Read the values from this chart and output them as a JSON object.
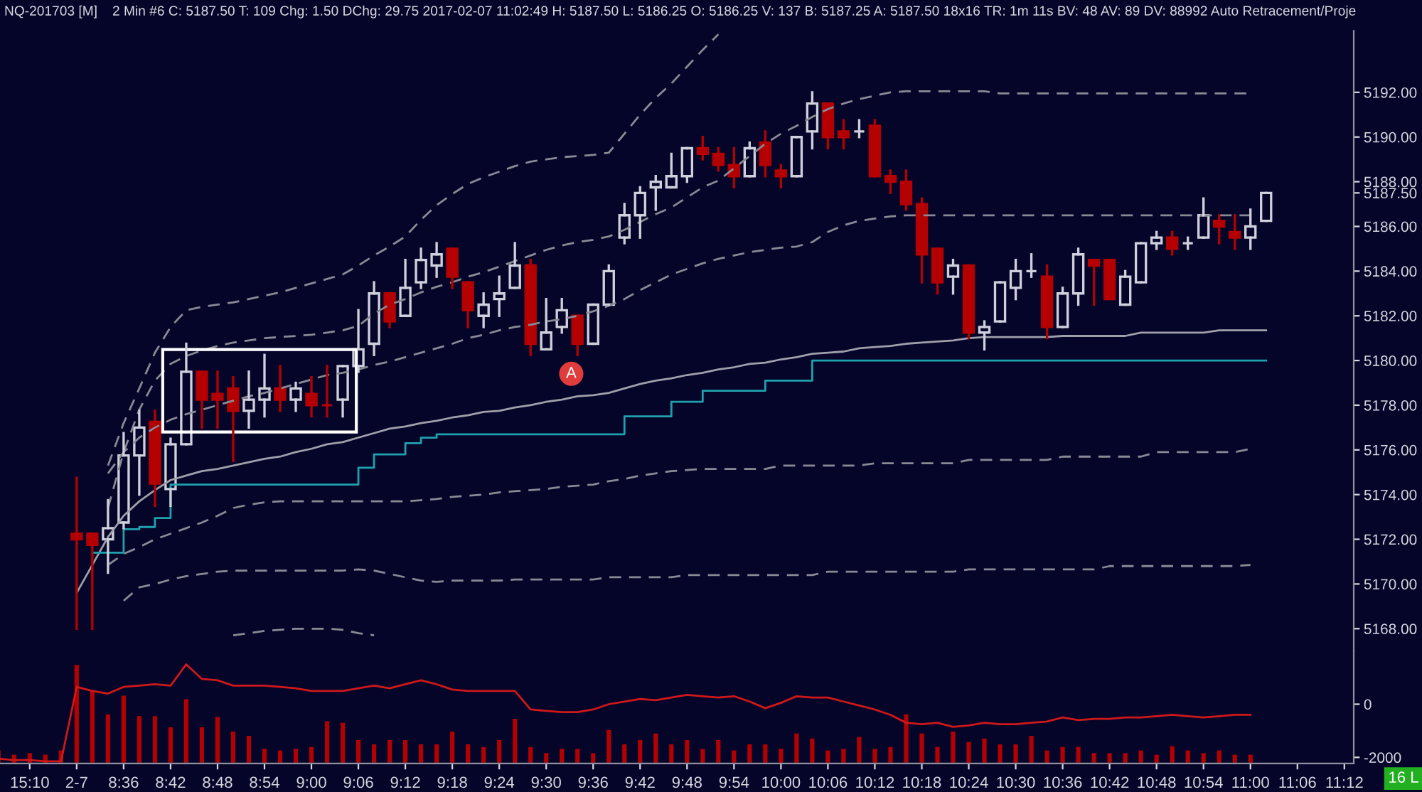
{
  "chart_data": [
    {
      "type": "candlestick",
      "title": "NQ-201703 [M]",
      "subtitle": "2 Min #6 C: 5187.50 T: 109 Chg: 1.50 DChg: 29.75 2017-02-07 11:02:49 H: 5187.50 L: 5186.25 O: 5186.25 V: 137 B: 5187.25 A: 5187.50 18x16 TR: 1m 11s BV: 48 AV: 89 DV: 88992 Auto Retracement/Proje",
      "ohlc": [
        null,
        null,
        null,
        null,
        null,
        [
          5172.25,
          5174.75,
          5168.0,
          5172.0
        ],
        [
          5172.25,
          5172.25,
          5168.0,
          5171.75
        ],
        [
          5172.0,
          5173.75,
          5170.5,
          5172.5
        ],
        [
          5172.75,
          5176.75,
          5172.5,
          5175.75
        ],
        [
          5175.75,
          5177.75,
          5174.0,
          5177.0
        ],
        [
          5177.25,
          5177.75,
          5173.5,
          5174.5
        ],
        [
          5174.25,
          5176.5,
          5173.5,
          5176.25
        ],
        [
          5176.25,
          5180.75,
          5176.25,
          5179.5
        ],
        [
          5179.5,
          5179.5,
          5177.0,
          5178.25
        ],
        [
          5178.5,
          5179.5,
          5177.0,
          5178.25
        ],
        [
          5178.75,
          5179.25,
          5175.5,
          5177.75
        ],
        [
          5177.75,
          5179.5,
          5177.0,
          5178.25
        ],
        [
          5178.25,
          5180.25,
          5177.5,
          5178.75
        ],
        [
          5178.75,
          5179.75,
          5177.75,
          5178.25
        ],
        [
          5178.25,
          5179.0,
          5177.75,
          5178.75
        ],
        [
          5178.5,
          5179.25,
          5177.5,
          5178.0
        ],
        [
          5178.0,
          5179.75,
          5177.5,
          5178.0
        ],
        [
          5178.25,
          5179.75,
          5177.5,
          5179.75
        ],
        [
          5179.75,
          5182.25,
          5179.5,
          5180.5
        ],
        [
          5180.75,
          5183.5,
          5180.25,
          5183.0
        ],
        [
          5183.0,
          5183.0,
          5181.5,
          5181.75
        ],
        [
          5182.0,
          5184.5,
          5182.0,
          5183.25
        ],
        [
          5183.5,
          5185.0,
          5183.25,
          5184.5
        ],
        [
          5184.25,
          5185.25,
          5183.75,
          5184.75
        ],
        [
          5185.0,
          5185.0,
          5183.25,
          5183.75
        ],
        [
          5183.5,
          5183.5,
          5181.5,
          5182.25
        ],
        [
          5182.0,
          5183.0,
          5181.5,
          5182.5
        ],
        [
          5182.75,
          5183.75,
          5182.0,
          5183.0
        ],
        [
          5183.25,
          5185.25,
          5183.25,
          5184.25
        ],
        [
          5184.25,
          5184.5,
          5180.25,
          5180.75
        ],
        [
          5180.5,
          5182.75,
          5180.5,
          5181.25
        ],
        [
          5181.5,
          5182.75,
          5181.25,
          5182.25
        ],
        [
          5182.0,
          5182.0,
          5180.25,
          5180.75
        ],
        [
          5180.75,
          5182.5,
          5180.75,
          5182.5
        ],
        [
          5182.5,
          5184.25,
          5182.5,
          5184.0
        ],
        [
          5185.5,
          5187.0,
          5185.25,
          5186.5
        ],
        [
          5186.5,
          5187.75,
          5185.5,
          5187.5
        ],
        [
          5187.75,
          5188.25,
          5186.75,
          5188.0
        ],
        [
          5187.75,
          5189.25,
          5187.75,
          5188.25
        ],
        [
          5188.25,
          5189.5,
          5188.0,
          5189.5
        ],
        [
          5189.5,
          5190.0,
          5189.0,
          5189.25
        ],
        [
          5189.25,
          5189.5,
          5188.5,
          5188.75
        ],
        [
          5188.75,
          5189.5,
          5187.75,
          5188.25
        ],
        [
          5188.25,
          5189.75,
          5188.25,
          5189.5
        ],
        [
          5189.75,
          5190.25,
          5188.25,
          5188.75
        ],
        [
          5188.5,
          5188.75,
          5187.75,
          5188.25
        ],
        [
          5188.25,
          5190.0,
          5188.25,
          5190.0
        ],
        [
          5190.25,
          5192.0,
          5189.5,
          5191.5
        ],
        [
          5191.5,
          5191.5,
          5189.5,
          5190.0
        ],
        [
          5190.25,
          5190.75,
          5189.5,
          5190.0
        ],
        [
          5190.25,
          5190.75,
          5190.0,
          5190.25
        ],
        [
          5190.5,
          5190.75,
          5188.25,
          5188.25
        ],
        [
          5188.25,
          5188.5,
          5187.5,
          5188.0
        ],
        [
          5188.0,
          5188.5,
          5186.75,
          5187.0
        ],
        [
          5187.0,
          5187.25,
          5183.5,
          5184.75
        ],
        [
          5185.0,
          5185.0,
          5183.0,
          5183.5
        ],
        [
          5183.75,
          5184.5,
          5183.0,
          5184.25
        ],
        [
          5184.25,
          5184.25,
          5181.0,
          5181.25
        ],
        [
          5181.25,
          5181.75,
          5180.5,
          5181.5
        ],
        [
          5181.75,
          5183.5,
          5181.75,
          5183.5
        ],
        [
          5183.25,
          5184.5,
          5182.75,
          5184.0
        ],
        [
          5184.0,
          5184.75,
          5183.75,
          5184.0
        ],
        [
          5183.75,
          5184.25,
          5181.0,
          5181.5
        ],
        [
          5181.5,
          5183.25,
          5181.5,
          5183.0
        ],
        [
          5183.0,
          5185.0,
          5182.5,
          5184.75
        ],
        [
          5184.5,
          5184.5,
          5182.5,
          5184.25
        ],
        [
          5184.5,
          5184.5,
          5182.75,
          5182.75
        ],
        [
          5182.5,
          5184.0,
          5182.5,
          5183.75
        ],
        [
          5183.5,
          5185.25,
          5183.5,
          5185.25
        ],
        [
          5185.25,
          5185.75,
          5185.0,
          5185.5
        ],
        [
          5185.5,
          5185.75,
          5184.75,
          5185.0
        ],
        [
          5185.25,
          5185.5,
          5185.0,
          5185.25
        ],
        [
          5185.5,
          5187.25,
          5185.5,
          5186.5
        ],
        [
          5186.25,
          5186.5,
          5185.25,
          5186.0
        ],
        [
          5185.75,
          5186.5,
          5185.0,
          5185.5
        ],
        [
          5185.5,
          5186.75,
          5185.0,
          5186.0
        ],
        [
          5186.25,
          5187.5,
          5186.25,
          5187.5
        ],
        null,
        null,
        null,
        null,
        null
      ],
      "colors": [
        null,
        null,
        null,
        null,
        null,
        "#b40000",
        "#b40000",
        "#d0d0dc",
        "#d0d0dc",
        "#d0d0dc",
        "#b40000",
        "#d0d0dc",
        "#d0d0dc",
        "#b40000",
        "#b40000",
        "#b40000",
        "#d0d0dc",
        "#d0d0dc",
        "#b40000",
        "#d0d0dc",
        "#b40000",
        "#b40000",
        "#d0d0dc",
        "#d0d0dc",
        "#d0d0dc",
        "#b40000",
        "#d0d0dc",
        "#d0d0dc",
        "#d0d0dc",
        "#b40000",
        "#b40000",
        "#d0d0dc",
        "#d0d0dc",
        "#d0d0dc",
        "#b40000",
        "#d0d0dc",
        "#d0d0dc",
        "#b40000",
        "#d0d0dc",
        "#d0d0dc",
        "#d0d0dc",
        "#d0d0dc",
        "#d0d0dc",
        "#d0d0dc",
        "#d0d0dc",
        "#b40000",
        "#b40000",
        "#b40000",
        "#d0d0dc",
        "#b40000",
        "#b40000",
        "#d0d0dc",
        "#d0d0dc",
        "#b40000",
        "#b40000",
        "#d0d0dc",
        "#b40000",
        "#b40000",
        "#b40000",
        "#b40000",
        "#b40000",
        "#d0d0dc",
        "#b40000",
        "#d0d0dc",
        "#d0d0dc",
        "#d0d0dc",
        "#d0d0dc",
        "#b40000",
        "#d0d0dc",
        "#d0d0dc",
        "#b40000",
        "#b40000",
        "#d0d0dc",
        "#d0d0dc",
        "#d0d0dc",
        "#b40000",
        "#d0d0dc",
        "#d0d0dc",
        "#b40000",
        "#b40000",
        "#d0d0dc",
        "#d0d0dc",
        null,
        null,
        null,
        null,
        null
      ],
      "series": [
        {
          "type": "line",
          "line_style": "dashed",
          "color": "#8a8a95",
          "values": [
            null,
            null,
            null,
            null,
            null,
            null,
            null,
            5175.3,
            5177.2,
            5178.75,
            5180.35,
            5181.5,
            5182.25,
            5182.4,
            5182.5,
            5182.6,
            5182.75,
            5182.9,
            5183.05,
            5183.25,
            5183.45,
            5183.65,
            5183.85,
            5184.25,
            5184.7,
            5185.1,
            5185.55,
            5186.3,
            5186.95,
            5187.45,
            5187.9,
            5188.2,
            5188.45,
            5188.7,
            5188.9,
            5189.0,
            5189.1,
            5189.15,
            5189.2,
            5189.3,
            5190.15,
            5191.0,
            5191.75,
            5192.4,
            5193.15,
            5193.9,
            5194.6,
            null,
            null,
            null,
            null,
            null,
            null,
            null,
            null,
            null,
            null,
            null,
            null,
            null,
            null,
            null,
            null,
            null,
            null,
            null,
            null,
            null,
            null,
            null,
            null,
            null,
            null,
            null,
            null,
            null,
            null,
            null,
            null,
            null,
            null,
            null,
            null,
            null,
            null,
            null,
            null
          ]
        },
        {
          "type": "line",
          "line_style": "dashed",
          "color": "#8a8a95",
          "values": [
            null,
            null,
            null,
            null,
            null,
            null,
            null,
            5173.4,
            5175.9,
            5177.8,
            5179.1,
            5179.85,
            5180.2,
            5180.45,
            5180.65,
            5180.8,
            5180.9,
            5181.0,
            5181.05,
            5181.1,
            5181.15,
            5181.25,
            5181.35,
            5181.55,
            5182.1,
            5182.5,
            5182.75,
            5183.05,
            5183.3,
            5183.5,
            5183.75,
            5183.95,
            5184.2,
            5184.45,
            5184.7,
            5184.95,
            5185.15,
            5185.3,
            5185.4,
            5185.55,
            5185.85,
            5186.2,
            5186.55,
            5186.85,
            5187.3,
            5187.75,
            5188.05,
            5188.6,
            5189.15,
            5189.7,
            5190.15,
            5190.5,
            5190.9,
            5191.25,
            5191.5,
            5191.7,
            5191.85,
            5192.0,
            5192.05,
            5192.05,
            5192.05,
            5192.05,
            5192.05,
            5192.05,
            5191.95,
            5191.95,
            5191.95,
            5191.95,
            5191.95,
            5191.95,
            5191.95,
            5191.95,
            5191.95,
            5191.95,
            5191.95,
            5191.95,
            5191.95,
            5191.95,
            5191.95,
            5191.95,
            5191.95,
            null,
            null,
            null,
            null,
            null,
            null
          ]
        },
        {
          "type": "line",
          "line_style": "dashed",
          "color": "#8a8a95",
          "values": [
            null,
            null,
            null,
            null,
            null,
            null,
            null,
            5174.95,
            5175.9,
            5176.55,
            5177.0,
            5177.35,
            5177.6,
            5177.8,
            5178.0,
            5178.2,
            5178.4,
            5178.55,
            5178.75,
            5178.95,
            5179.15,
            5179.35,
            5179.45,
            5179.6,
            5179.8,
            5179.95,
            5180.15,
            5180.35,
            5180.55,
            5180.75,
            5181.0,
            5181.15,
            5181.35,
            5181.5,
            5181.6,
            5181.75,
            5181.85,
            5182.0,
            5182.2,
            5182.45,
            5182.75,
            5183.15,
            5183.5,
            5183.85,
            5184.1,
            5184.35,
            5184.55,
            5184.7,
            5184.85,
            5184.95,
            5185.05,
            5185.1,
            5185.3,
            5185.75,
            5186.05,
            5186.25,
            5186.35,
            5186.45,
            5186.5,
            5186.5,
            5186.5,
            5186.5,
            5186.5,
            5186.5,
            5186.5,
            5186.5,
            5186.5,
            5186.5,
            5186.5,
            5186.5,
            5186.5,
            5186.5,
            5186.5,
            5186.5,
            5186.5,
            5186.5,
            5186.5,
            5186.5,
            5186.5,
            5186.5,
            5186.5,
            null,
            null,
            null,
            null,
            null,
            null
          ]
        },
        {
          "type": "line",
          "line_style": "solid",
          "color": "#a0a0aa",
          "values": [
            null,
            null,
            null,
            null,
            null,
            5169.6,
            5170.85,
            5172.1,
            5173.05,
            5173.7,
            5174.2,
            5174.65,
            5174.85,
            5175.05,
            5175.15,
            5175.3,
            5175.45,
            5175.6,
            5175.7,
            5175.9,
            5176.05,
            5176.25,
            5176.35,
            5176.55,
            5176.75,
            5176.95,
            5177.05,
            5177.2,
            5177.3,
            5177.45,
            5177.55,
            5177.7,
            5177.75,
            5177.9,
            5178.0,
            5178.15,
            5178.25,
            5178.4,
            5178.45,
            5178.55,
            5178.75,
            5178.95,
            5179.1,
            5179.2,
            5179.35,
            5179.45,
            5179.6,
            5179.7,
            5179.85,
            5179.9,
            5180.05,
            5180.15,
            5180.3,
            5180.35,
            5180.4,
            5180.55,
            5180.6,
            5180.65,
            5180.75,
            5180.8,
            5180.85,
            5180.9,
            5181.0,
            5181.05,
            5181.05,
            5181.05,
            5181.05,
            5181.05,
            5181.1,
            5181.1,
            5181.1,
            5181.1,
            5181.1,
            5181.25,
            5181.25,
            5181.25,
            5181.25,
            5181.25,
            5181.35,
            5181.35,
            5181.35,
            5181.35,
            null,
            null,
            null,
            null,
            null
          ]
        },
        {
          "type": "line",
          "line_style": "dashed",
          "color": "#8a8a95",
          "values": [
            null,
            null,
            null,
            null,
            null,
            null,
            null,
            5170.85,
            5171.35,
            5171.65,
            5172.0,
            5172.25,
            5172.5,
            5172.75,
            5173.05,
            5173.4,
            5173.55,
            5173.65,
            5173.7,
            5173.7,
            5173.7,
            5173.7,
            5173.7,
            5173.7,
            5173.7,
            5173.7,
            5173.7,
            5173.75,
            5173.8,
            5173.9,
            5173.95,
            5174.0,
            5174.1,
            5174.15,
            5174.2,
            5174.25,
            5174.35,
            5174.4,
            5174.45,
            5174.6,
            5174.7,
            5174.85,
            5174.95,
            5175.05,
            5175.1,
            5175.15,
            5175.15,
            5175.15,
            5175.15,
            5175.15,
            5175.3,
            5175.3,
            5175.3,
            5175.3,
            5175.3,
            5175.3,
            5175.4,
            5175.4,
            5175.4,
            5175.4,
            5175.4,
            5175.4,
            5175.55,
            5175.55,
            5175.55,
            5175.55,
            5175.55,
            5175.55,
            5175.7,
            5175.7,
            5175.7,
            5175.7,
            5175.7,
            5175.7,
            5175.9,
            5175.9,
            5175.9,
            5175.9,
            5175.9,
            5175.9,
            5176.05,
            null,
            null,
            null,
            null,
            null,
            null
          ]
        },
        {
          "type": "line",
          "line_style": "dashed",
          "color": "#8a8a95",
          "values": [
            null,
            null,
            null,
            null,
            null,
            null,
            null,
            null,
            5169.25,
            5169.85,
            5170.0,
            5170.2,
            5170.35,
            5170.45,
            5170.55,
            5170.6,
            5170.6,
            5170.6,
            5170.6,
            5170.6,
            5170.6,
            5170.6,
            5170.6,
            5170.65,
            5170.6,
            5170.45,
            5170.3,
            5170.15,
            5170.1,
            5170.15,
            5170.15,
            5170.15,
            5170.15,
            5170.2,
            5170.2,
            5170.2,
            5170.2,
            5170.2,
            5170.2,
            5170.3,
            5170.3,
            5170.3,
            5170.3,
            5170.3,
            5170.4,
            5170.4,
            5170.4,
            5170.4,
            5170.4,
            5170.4,
            5170.4,
            5170.4,
            5170.4,
            5170.55,
            5170.55,
            5170.55,
            5170.55,
            5170.55,
            5170.55,
            5170.55,
            5170.55,
            5170.55,
            5170.65,
            5170.65,
            5170.65,
            5170.65,
            5170.65,
            5170.65,
            5170.65,
            5170.65,
            5170.65,
            5170.8,
            5170.8,
            5170.8,
            5170.8,
            5170.8,
            5170.8,
            5170.8,
            5170.8,
            5170.8,
            5170.85,
            null,
            null,
            null,
            null,
            null,
            null
          ]
        },
        {
          "type": "line",
          "line_style": "dashed",
          "color": "#8a8a95",
          "values": [
            null,
            null,
            null,
            null,
            null,
            null,
            null,
            null,
            null,
            null,
            null,
            null,
            null,
            null,
            null,
            5167.7,
            5167.8,
            5167.9,
            5167.95,
            5168.0,
            5168.0,
            5168.0,
            5167.95,
            5167.8,
            5167.7,
            null,
            null,
            null,
            null,
            null,
            null,
            null,
            null,
            null,
            null,
            null,
            null,
            null,
            null,
            null,
            null,
            null,
            null,
            null,
            null,
            null,
            null,
            null,
            null,
            null,
            null,
            null,
            null,
            null,
            null,
            null,
            null,
            null,
            null,
            null,
            null,
            null,
            null,
            null,
            null,
            null,
            null,
            null,
            null,
            null,
            null,
            null,
            null,
            null,
            null,
            null,
            null,
            null,
            null,
            null,
            null,
            null,
            null,
            null,
            null,
            null,
            null
          ]
        },
        {
          "type": "step",
          "line_style": "solid",
          "color": "#1fa2ad",
          "values": [
            null,
            null,
            null,
            null,
            null,
            null,
            5171.4,
            5171.4,
            5172.45,
            5172.55,
            5172.95,
            5174.45,
            5174.45,
            5174.45,
            5174.45,
            5174.45,
            5174.45,
            5174.45,
            5174.45,
            5174.45,
            5174.45,
            5174.45,
            5174.45,
            5175.2,
            5175.8,
            5175.8,
            5176.3,
            5176.55,
            5176.7,
            5176.7,
            5176.7,
            5176.7,
            5176.7,
            5176.7,
            5176.7,
            5176.7,
            5176.7,
            5176.7,
            5176.7,
            5176.7,
            5177.5,
            5177.5,
            5177.5,
            5178.15,
            5178.15,
            5178.65,
            5178.65,
            5178.65,
            5178.65,
            5179.1,
            5179.1,
            5179.1,
            5180.0,
            5180.0,
            5180.0,
            5180.0,
            5180.0,
            5180.0,
            5180.0,
            5180.0,
            5180.0,
            5180.0,
            5180.0,
            5180.0,
            5180.0,
            5180.0,
            5180.0,
            5180.0,
            5180.0,
            5180.0,
            5180.0,
            5180.0,
            5180.0,
            5180.0,
            5180.0,
            5180.0,
            5180.0,
            5180.0,
            5180.0,
            5180.0,
            5180.0,
            5180.0,
            null,
            null,
            null,
            null,
            null
          ]
        }
      ],
      "ylim": [
        5167.0,
        5194.75
      ],
      "yticks": [
        {
          "value": 5168,
          "label": "5168.00"
        },
        {
          "value": 5170,
          "label": "5170.00"
        },
        {
          "value": 5172,
          "label": "5172.00"
        },
        {
          "value": 5174,
          "label": "5174.00"
        },
        {
          "value": 5176,
          "label": "5176.00"
        },
        {
          "value": 5178,
          "label": "5178.00"
        },
        {
          "value": 5180,
          "label": "5180.00"
        },
        {
          "value": 5182,
          "label": "5182.00"
        },
        {
          "value": 5184,
          "label": "5184.00"
        },
        {
          "value": 5186,
          "label": "5186.00"
        },
        {
          "value": 5187.5,
          "label": "5187.50"
        },
        {
          "value": 5188,
          "label": "5188.00"
        },
        {
          "value": 5190,
          "label": "5190.00"
        },
        {
          "value": 5192,
          "label": "5192.00"
        }
      ],
      "tick_labels": "y",
      "annotations": [
        "A"
      ]
    },
    {
      "type": "bar",
      "categories": [
        null,
        null,
        "15:10",
        null,
        null,
        "2-7",
        null,
        null,
        "8:36",
        null,
        null,
        "8:42",
        null,
        null,
        "8:48",
        null,
        null,
        "8:54",
        null,
        null,
        "9:00",
        null,
        null,
        "9:06",
        null,
        null,
        "9:12",
        null,
        null,
        "9:18",
        null,
        null,
        "9:24",
        null,
        null,
        "9:30",
        null,
        null,
        "9:36",
        null,
        null,
        "9:42",
        null,
        null,
        "9:48",
        null,
        null,
        "9:54",
        null,
        null,
        "10:00",
        null,
        null,
        "10:06",
        null,
        null,
        "10:12",
        null,
        null,
        "10:18",
        null,
        null,
        "10:24",
        null,
        null,
        "10:30",
        null,
        null,
        "10:36",
        null,
        null,
        "10:42",
        null,
        null,
        "10:48",
        null,
        null,
        "10:54",
        null,
        null,
        "11:00",
        null,
        null,
        "11:06",
        null,
        null,
        "11:12"
      ],
      "series": [
        {
          "type": "bar",
          "color": "#b40000",
          "values": [
            460,
            300,
            360,
            300,
            460,
            3680,
            2680,
            1820,
            2520,
            1750,
            1750,
            1330,
            2390,
            1330,
            1720,
            1170,
            1010,
            520,
            460,
            520,
            590,
            1560,
            1500,
            850,
            690,
            850,
            850,
            690,
            690,
            1170,
            690,
            590,
            850,
            1650,
            590,
            360,
            520,
            520,
            360,
            1230,
            690,
            850,
            1100,
            690,
            850,
            520,
            850,
            460,
            690,
            690,
            520,
            1100,
            910,
            460,
            520,
            970,
            520,
            590,
            1820,
            1100,
            590,
            1170,
            780,
            910,
            690,
            690,
            1010,
            460,
            590,
            590,
            360,
            360,
            360,
            460,
            300,
            620,
            460,
            360,
            460,
            300,
            300,
            null,
            null,
            null,
            null,
            null,
            null
          ],
          "base": [
            -2200,
            -2200,
            -2200,
            -2200,
            -2200,
            -2200,
            -2200,
            -2200,
            -2200,
            -2200,
            -2200,
            -2200,
            -2200,
            -2200,
            -2200,
            -2200,
            -2200,
            -2200,
            -2200,
            -2200,
            -2200,
            -2200,
            -2200,
            -2200,
            -2200,
            -2200,
            -2200,
            -2200,
            -2200,
            -2200,
            -2200,
            -2200,
            -2200,
            -2200,
            -2200,
            -2200,
            -2200,
            -2200,
            -2200,
            -2200,
            -2200,
            -2200,
            -2200,
            -2200,
            -2200,
            -2200,
            -2200,
            -2200,
            -2200,
            -2200,
            -2200,
            -2200,
            -2200,
            -2200,
            -2200,
            -2200,
            -2200,
            -2200,
            -2200,
            -2200,
            -2200,
            -2200,
            -2200,
            -2200,
            -2200,
            -2200,
            -2200,
            -2200,
            -2200,
            -2200,
            -2200,
            -2200,
            -2200,
            -2200,
            -2200,
            -2200,
            -2200,
            -2200,
            -2200,
            -2200,
            -2200,
            null,
            null,
            null,
            null,
            null,
            null
          ]
        },
        {
          "type": "line",
          "line_style": "solid",
          "color": "#d01818",
          "values": [
            -2050,
            -2100,
            -2100,
            -2150,
            -2150,
            650,
            500,
            400,
            650,
            700,
            750,
            700,
            1500,
            950,
            900,
            700,
            700,
            700,
            650,
            600,
            500,
            500,
            500,
            600,
            700,
            600,
            750,
            900,
            750,
            550,
            500,
            500,
            500,
            500,
            -200,
            -250,
            -300,
            -300,
            -200,
            0,
            100,
            200,
            150,
            250,
            350,
            300,
            250,
            300,
            100,
            -150,
            50,
            300,
            250,
            250,
            100,
            -50,
            -200,
            -400,
            -700,
            -750,
            -700,
            -850,
            -800,
            -700,
            -750,
            -750,
            -700,
            -650,
            -500,
            -600,
            -550,
            -550,
            -500,
            -500,
            -450,
            -400,
            -450,
            -500,
            -450,
            -400,
            -400,
            null,
            null,
            null,
            null,
            null,
            null
          ]
        }
      ],
      "ylim": [
        -2230,
        2000
      ],
      "yticks": [
        {
          "value": -2000,
          "label": "-2000"
        },
        0
      ],
      "annotations": [
        "16 L"
      ]
    }
  ]
}
